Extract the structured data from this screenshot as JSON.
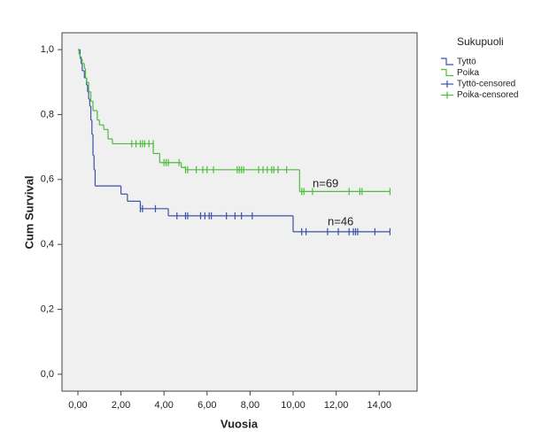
{
  "chart_data": {
    "type": "step",
    "x_label": "Vuosia",
    "y_label": "Cum Survival",
    "legend_title": "Sukupuoli",
    "legend": "right",
    "xlim": [
      -0.74,
      15.76
    ],
    "ylim": [
      -0.052,
      1.052
    ],
    "xticks": [
      {
        "value": 0,
        "label": "0,00"
      },
      {
        "value": 2,
        "label": "2,00"
      },
      {
        "value": 4,
        "label": "4,00"
      },
      {
        "value": 6,
        "label": "6,00"
      },
      {
        "value": 8,
        "label": "8,00"
      },
      {
        "value": 10,
        "label": "10,00"
      },
      {
        "value": 12,
        "label": "12,00"
      },
      {
        "value": 14,
        "label": "14,00"
      }
    ],
    "yticks": [
      {
        "value": 0,
        "label": "0,0"
      },
      {
        "value": 0.2,
        "label": "0,2"
      },
      {
        "value": 0.4,
        "label": "0,4"
      },
      {
        "value": 0.6,
        "label": "0,6"
      },
      {
        "value": 0.8,
        "label": "0,8"
      },
      {
        "value": 1,
        "label": "1,0"
      }
    ],
    "annotations": [
      "n=69",
      "n=46"
    ],
    "series": [
      {
        "name": "Tyttö",
        "kind": "step",
        "color": "#3b51a9",
        "x": [
          0,
          0.1,
          0.15,
          0.2,
          0.3,
          0.4,
          0.45,
          0.5,
          0.55,
          0.6,
          0.65,
          0.7,
          0.75,
          0.8,
          2.0,
          2.3,
          2.9,
          4.2,
          10.0,
          14.5
        ],
        "values": [
          1.0,
          0.978,
          0.957,
          0.935,
          0.913,
          0.891,
          0.87,
          0.848,
          0.826,
          0.783,
          0.739,
          0.674,
          0.63,
          0.58,
          0.555,
          0.533,
          0.51,
          0.488,
          0.439,
          0.439
        ]
      },
      {
        "name": "Poika",
        "kind": "step",
        "color": "#4cbc3c",
        "x": [
          0,
          0.05,
          0.1,
          0.2,
          0.3,
          0.35,
          0.4,
          0.5,
          0.6,
          0.7,
          0.9,
          1.0,
          1.2,
          1.4,
          1.6,
          3.5,
          3.8,
          4.8,
          5.0,
          10.3,
          14.5
        ],
        "values": [
          1.0,
          0.986,
          0.971,
          0.957,
          0.942,
          0.913,
          0.899,
          0.87,
          0.841,
          0.812,
          0.783,
          0.768,
          0.754,
          0.725,
          0.71,
          0.68,
          0.652,
          0.637,
          0.63,
          0.563,
          0.563
        ]
      },
      {
        "name": "Tyttö-censored",
        "kind": "censored",
        "color": "#3b51a9",
        "x": [
          2.9,
          3.0,
          3.6,
          4.6,
          5.0,
          5.1,
          5.7,
          5.9,
          6.1,
          6.2,
          6.9,
          7.3,
          7.6,
          8.1,
          10.4,
          10.6,
          11.6,
          12.1,
          12.6,
          12.8,
          12.9,
          13.0,
          13.8,
          14.5
        ],
        "values": [
          0.51,
          0.51,
          0.51,
          0.488,
          0.488,
          0.488,
          0.488,
          0.488,
          0.488,
          0.488,
          0.488,
          0.488,
          0.488,
          0.488,
          0.439,
          0.439,
          0.439,
          0.439,
          0.439,
          0.439,
          0.439,
          0.439,
          0.439,
          0.439
        ]
      },
      {
        "name": "Poika-censored",
        "kind": "censored",
        "color": "#4cbc3c",
        "x": [
          2.5,
          2.7,
          2.9,
          3.0,
          3.1,
          3.3,
          3.5,
          4.0,
          4.1,
          4.2,
          4.7,
          5.0,
          5.1,
          5.5,
          5.8,
          6.0,
          6.3,
          7.4,
          7.5,
          7.6,
          7.7,
          8.4,
          8.6,
          8.8,
          9.0,
          9.1,
          9.3,
          9.7,
          10.4,
          10.5,
          10.9,
          12.6,
          13.1,
          13.2,
          14.5
        ],
        "values": [
          0.71,
          0.71,
          0.71,
          0.71,
          0.71,
          0.71,
          0.71,
          0.652,
          0.652,
          0.652,
          0.652,
          0.63,
          0.63,
          0.63,
          0.63,
          0.63,
          0.63,
          0.63,
          0.63,
          0.63,
          0.63,
          0.63,
          0.63,
          0.63,
          0.63,
          0.63,
          0.63,
          0.63,
          0.563,
          0.563,
          0.563,
          0.563,
          0.563,
          0.563,
          0.563
        ]
      }
    ]
  }
}
